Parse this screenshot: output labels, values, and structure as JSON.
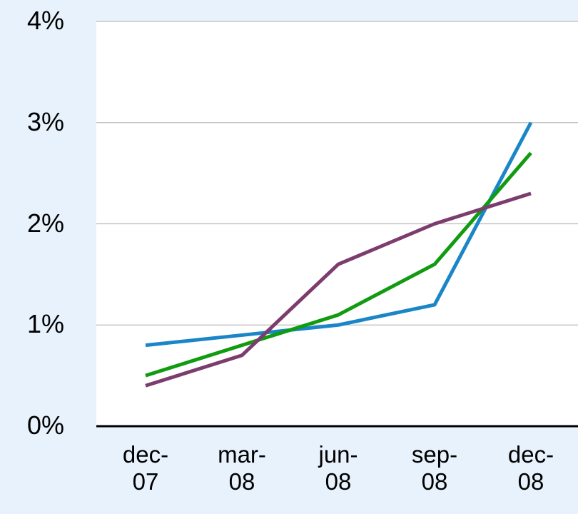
{
  "chart_data": {
    "type": "line",
    "categories": [
      "dec-07",
      "mar-08",
      "jun-08",
      "sep-08",
      "dec-08"
    ],
    "series": [
      {
        "color": "#1a86c8",
        "values": [
          0.8,
          0.9,
          1.0,
          1.2,
          3.0
        ]
      },
      {
        "color": "#109b10",
        "values": [
          0.5,
          0.8,
          1.1,
          1.6,
          2.7
        ]
      },
      {
        "color": "#7d3c6e",
        "values": [
          0.4,
          0.7,
          1.6,
          2.0,
          2.3
        ]
      }
    ],
    "ylim": [
      0,
      4
    ],
    "yticks": [
      {
        "value": 0,
        "label": "0%"
      },
      {
        "value": 1,
        "label": "1%"
      },
      {
        "value": 2,
        "label": "2%"
      },
      {
        "value": 3,
        "label": "3%"
      },
      {
        "value": 4,
        "label": "4%"
      }
    ],
    "grid": true
  }
}
